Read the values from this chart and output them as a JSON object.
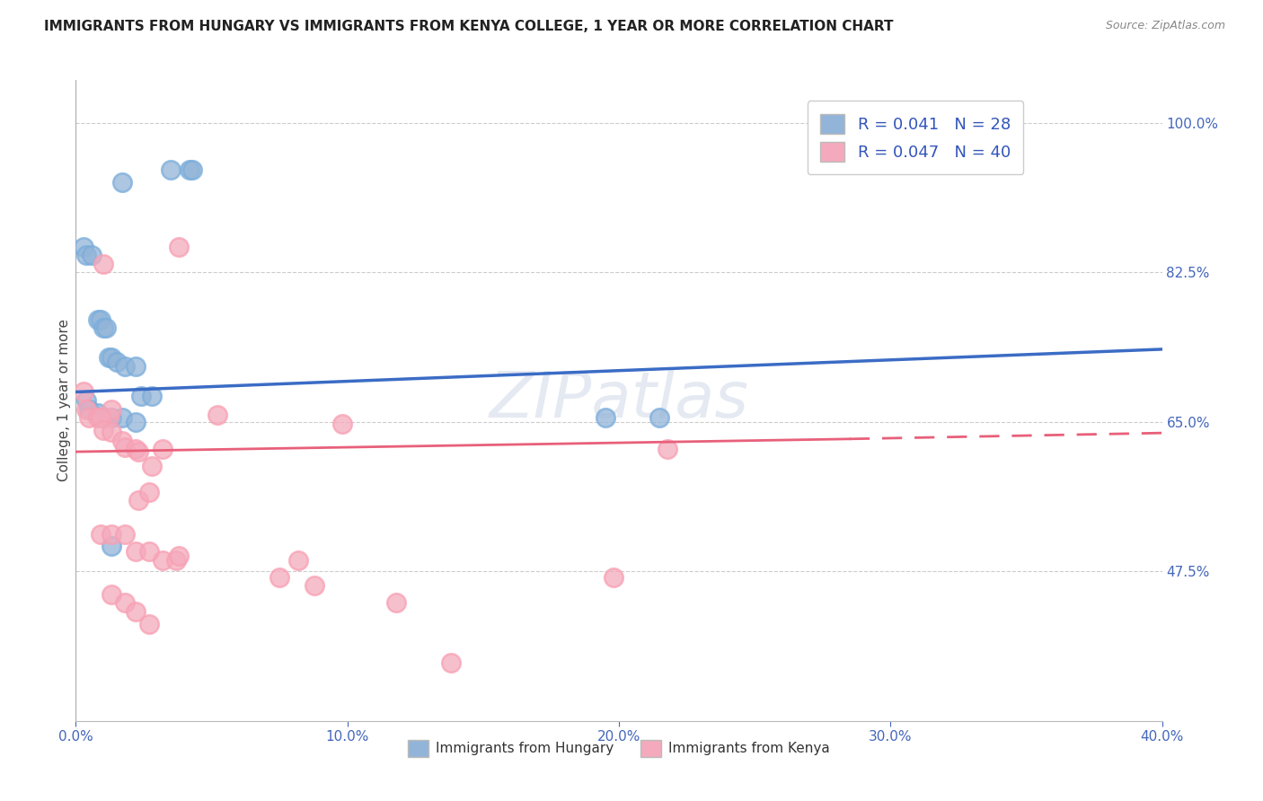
{
  "title": "IMMIGRANTS FROM HUNGARY VS IMMIGRANTS FROM KENYA COLLEGE, 1 YEAR OR MORE CORRELATION CHART",
  "source": "Source: ZipAtlas.com",
  "xlabel": "",
  "ylabel": "College, 1 year or more",
  "xlim": [
    0.0,
    0.4
  ],
  "ylim": [
    0.3,
    1.05
  ],
  "xtick_labels": [
    "0.0%",
    "",
    "",
    "",
    "",
    "10.0%",
    "",
    "",
    "",
    "",
    "20.0%",
    "",
    "",
    "",
    "",
    "30.0%",
    "",
    "",
    "",
    "",
    "40.0%"
  ],
  "xtick_vals": [
    0.0,
    0.02,
    0.04,
    0.06,
    0.08,
    0.1,
    0.12,
    0.14,
    0.16,
    0.18,
    0.2,
    0.22,
    0.24,
    0.26,
    0.28,
    0.3,
    0.32,
    0.34,
    0.36,
    0.38,
    0.4
  ],
  "xtick_major_labels": [
    "0.0%",
    "10.0%",
    "20.0%",
    "30.0%",
    "40.0%"
  ],
  "xtick_major_vals": [
    0.0,
    0.1,
    0.2,
    0.3,
    0.4
  ],
  "ytick_right_labels": [
    "100.0%",
    "82.5%",
    "65.0%",
    "47.5%"
  ],
  "ytick_right_vals": [
    1.0,
    0.825,
    0.65,
    0.475
  ],
  "watermark": "ZIPatlas",
  "legend_r1": "R = 0.041",
  "legend_n1": "N = 28",
  "legend_r2": "R = 0.047",
  "legend_n2": "N = 40",
  "hungary_color": "#92B4D8",
  "kenya_color": "#F4AABC",
  "hungary_edge_color": "#7AADDB",
  "kenya_edge_color": "#F8A0B3",
  "hungary_line_color": "#3B6CC5",
  "kenya_line_color": "#E8607A",
  "hungary_scatter_x": [
    0.017,
    0.035,
    0.042,
    0.043,
    0.003,
    0.004,
    0.006,
    0.008,
    0.009,
    0.01,
    0.011,
    0.012,
    0.013,
    0.015,
    0.018,
    0.022,
    0.024,
    0.028,
    0.004,
    0.005,
    0.008,
    0.01,
    0.013,
    0.017,
    0.022,
    0.013,
    0.195,
    0.215
  ],
  "hungary_scatter_y": [
    0.93,
    0.945,
    0.945,
    0.945,
    0.855,
    0.845,
    0.845,
    0.77,
    0.77,
    0.76,
    0.76,
    0.725,
    0.725,
    0.72,
    0.715,
    0.715,
    0.68,
    0.68,
    0.675,
    0.665,
    0.66,
    0.655,
    0.655,
    0.655,
    0.65,
    0.505,
    0.655,
    0.655
  ],
  "kenya_scatter_x": [
    0.038,
    0.01,
    0.003,
    0.004,
    0.005,
    0.008,
    0.012,
    0.013,
    0.009,
    0.01,
    0.013,
    0.017,
    0.018,
    0.022,
    0.023,
    0.028,
    0.032,
    0.023,
    0.027,
    0.009,
    0.013,
    0.018,
    0.022,
    0.027,
    0.032,
    0.037,
    0.038,
    0.075,
    0.013,
    0.018,
    0.022,
    0.027,
    0.098,
    0.052,
    0.082,
    0.088,
    0.118,
    0.138,
    0.198,
    0.218
  ],
  "kenya_scatter_y": [
    0.855,
    0.835,
    0.685,
    0.665,
    0.655,
    0.655,
    0.655,
    0.665,
    0.655,
    0.64,
    0.638,
    0.628,
    0.62,
    0.618,
    0.615,
    0.598,
    0.618,
    0.558,
    0.568,
    0.518,
    0.518,
    0.518,
    0.498,
    0.498,
    0.488,
    0.488,
    0.493,
    0.468,
    0.448,
    0.438,
    0.428,
    0.413,
    0.648,
    0.658,
    0.488,
    0.458,
    0.438,
    0.368,
    0.468,
    0.618
  ],
  "hungary_line_x": [
    0.0,
    0.4
  ],
  "hungary_line_y": [
    0.685,
    0.735
  ],
  "kenya_line_x": [
    0.0,
    0.285
  ],
  "kenya_line_y": [
    0.615,
    0.63
  ],
  "kenya_dash_line_x": [
    0.285,
    0.4
  ],
  "kenya_dash_line_y": [
    0.63,
    0.637
  ],
  "background_color": "#FFFFFF",
  "grid_color": "#CCCCCC",
  "title_fontsize": 11,
  "axis_label_fontsize": 11,
  "tick_fontsize": 11,
  "legend_fontsize": 13,
  "watermark_fontsize": 52,
  "watermark_color": "#99AACC",
  "watermark_alpha": 0.25
}
